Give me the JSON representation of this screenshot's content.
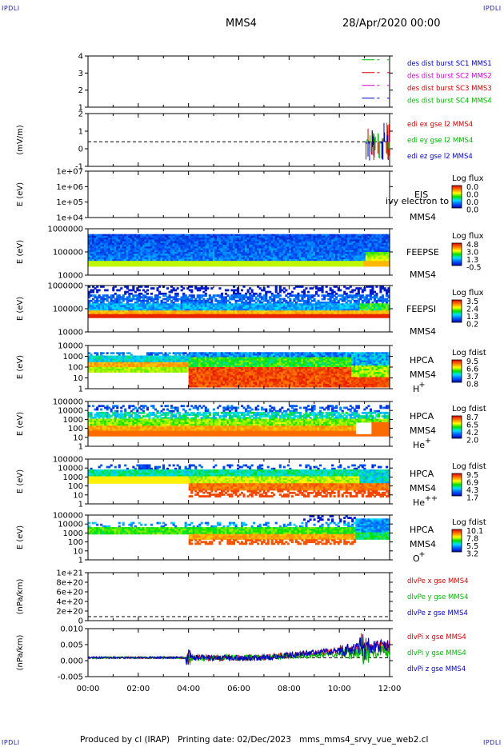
{
  "header": {
    "spacecraft": "MMS4",
    "date": "28/Apr/2020 00:00",
    "corner_label": "IPDLI"
  },
  "footer": {
    "producer": "Produced by cl (IRAP)",
    "printing": "Printing date: 02/Dec/2023",
    "file": "mms_mms4_srvy_vue_web2.cl"
  },
  "colors": {
    "red": "#d40000",
    "green": "#00b800",
    "blue": "#0000c8",
    "magenta": "#d000d0",
    "frame": "#000000"
  },
  "chart_data": [
    {
      "type": "line",
      "id": "des",
      "yticks": [
        "4",
        "3",
        "2",
        "1"
      ],
      "ylim": [
        0.6,
        4.6
      ],
      "series": [
        {
          "name": "des dist burst SC1 MMS1",
          "color": "#0000c8",
          "y": 1.3
        },
        {
          "name": "des dist burst SC2 MMS2",
          "color": "#d000d0",
          "y": 2.3
        },
        {
          "name": "des dist burst SC3 MMS3",
          "color": "#d40000",
          "y": 3.3
        },
        {
          "name": "des dist burst SC4 MMS4",
          "color": "#00b800",
          "y": 4.3
        }
      ],
      "legend": [
        "des dist burst SC1 MMS1",
        "des dist burst SC2 MMS2",
        "des dist burst SC3 MMS3",
        "des dist burst SC4 MMS4"
      ],
      "legend_colors": [
        "#0000c8",
        "#d000d0",
        "#d40000",
        "#00b800"
      ]
    },
    {
      "type": "line",
      "id": "edi",
      "ylabel": "(mV/m)",
      "yticks": [
        "2",
        "1",
        "0",
        "-1"
      ],
      "ylim": [
        -2,
        2.3
      ],
      "legend": [
        "edi ex gse l2 MMS4",
        "edi ey gse l2 MMS4",
        "edi ez gse l2 MMS4"
      ],
      "legend_colors": [
        "#d40000",
        "#00b800",
        "#0000c8"
      ]
    },
    {
      "type": "heatmap",
      "id": "eis",
      "ylabel": "E (eV)",
      "yticks": [
        "1e+07",
        "1e+06",
        "1e+05",
        "1e+04"
      ],
      "instrument": "EIS",
      "spacecraft": "MMS4",
      "overlay": "ivy electron to",
      "colorbar_title": "Log flux",
      "colorbar_values": [
        "0.0",
        "0.0",
        "0.0",
        "0.0"
      ]
    },
    {
      "type": "heatmap",
      "id": "feepse",
      "ylabel": "E (eV)",
      "yticks": [
        "1000000",
        "100000",
        "10000"
      ],
      "instrument": "FEEPSE",
      "spacecraft": "MMS4",
      "colorbar_title": "Log flux",
      "colorbar_values": [
        "4.8",
        "3.0",
        "1.3",
        "-0.5"
      ]
    },
    {
      "type": "heatmap",
      "id": "feepsi",
      "ylabel": "E (eV)",
      "yticks": [
        "1000000",
        "100000",
        "10000"
      ],
      "instrument": "FEEPSI",
      "spacecraft": "MMS4",
      "colorbar_title": "Log flux",
      "colorbar_values": [
        "3.5",
        "2.4",
        "1.3",
        "0.2"
      ]
    },
    {
      "type": "heatmap",
      "id": "hpca_h",
      "ylabel": "E (eV)",
      "yticks": [
        "10000",
        "1000",
        "100",
        "10",
        "1"
      ],
      "instrument": "HPCA",
      "spacecraft": "MMS4",
      "species": "H",
      "charge": "+",
      "colorbar_title": "Log fdist",
      "colorbar_values": [
        "9.5",
        "6.6",
        "3.7",
        "0.8"
      ]
    },
    {
      "type": "heatmap",
      "id": "hpca_he",
      "ylabel": "E (eV)",
      "yticks": [
        "100000",
        "10000",
        "1000",
        "100",
        "10",
        "1"
      ],
      "instrument": "HPCA",
      "spacecraft": "MMS4",
      "species": "He",
      "charge": "+",
      "colorbar_title": "Log fdist",
      "colorbar_values": [
        "8.7",
        "6.5",
        "4.2",
        "2.0"
      ]
    },
    {
      "type": "heatmap",
      "id": "hpca_hepp",
      "ylabel": "E (eV)",
      "yticks": [
        "100000",
        "10000",
        "1000",
        "100",
        "10",
        "1"
      ],
      "instrument": "HPCA",
      "spacecraft": "MMS4",
      "species": "He",
      "charge": "++",
      "colorbar_title": "Log fdist",
      "colorbar_values": [
        "9.5",
        "6.9",
        "4.3",
        "1.7"
      ]
    },
    {
      "type": "heatmap",
      "id": "hpca_o",
      "ylabel": "E (eV)",
      "yticks": [
        "100000",
        "10000",
        "1000",
        "100",
        "10",
        "1"
      ],
      "instrument": "HPCA",
      "spacecraft": "MMS4",
      "species": "O",
      "charge": "+",
      "colorbar_title": "Log fdist",
      "colorbar_values": [
        "10.1",
        "7.8",
        "5.5",
        "3.2"
      ]
    },
    {
      "type": "line",
      "id": "dpe",
      "ylabel": "(nPa/km)",
      "yticks": [
        "1e+21",
        "8e+20",
        "6e+20",
        "4e+20",
        "2e+20",
        "0"
      ],
      "ylim": [
        -1e+19,
        1.1e+21
      ],
      "legend": [
        "dlvPe x gse MMS4",
        "dlvPe y gse MMS4",
        "dlvPe z gse MMS4"
      ],
      "legend_colors": [
        "#d40000",
        "#00b800",
        "#0000c8"
      ]
    },
    {
      "type": "line",
      "id": "dpi",
      "ylabel": "(nPa/km)",
      "yticks": [
        "0.010",
        "0.005",
        "0.000",
        "-0.005"
      ],
      "ylim": [
        -0.0075,
        0.0115
      ],
      "xticks": [
        "00:00",
        "02:00",
        "04:00",
        "06:00",
        "08:00",
        "10:00",
        "12:00"
      ],
      "legend": [
        "dlvPi x gse MMS4",
        "dlvPi y gse MMS4",
        "dlvPi z gse MMS4"
      ],
      "legend_colors": [
        "#d40000",
        "#00b800",
        "#0000c8"
      ]
    }
  ]
}
